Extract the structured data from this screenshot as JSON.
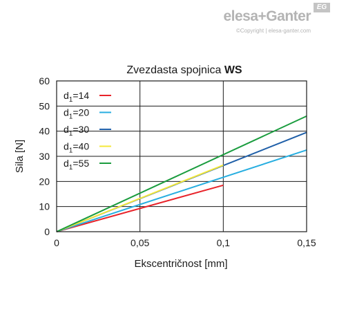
{
  "brand": {
    "logo": "elesa+Ganter",
    "badge": "EG",
    "copyright": "©Copyright | elesa-ganter.com"
  },
  "chart_data": {
    "type": "line",
    "title_regular": "Zvezdasta spojnica ",
    "title_bold": "WS",
    "xlabel": "Ekscentričnost [mm]",
    "ylabel": "Sila [N]",
    "xlim": [
      0,
      0.15
    ],
    "ylim": [
      0,
      60
    ],
    "x_ticks": [
      {
        "value": 0,
        "label": "0"
      },
      {
        "value": 0.05,
        "label": "0,05"
      },
      {
        "value": 0.1,
        "label": "0,1"
      },
      {
        "value": 0.15,
        "label": "0,15"
      }
    ],
    "y_ticks": [
      {
        "value": 0,
        "label": "0"
      },
      {
        "value": 10,
        "label": "10"
      },
      {
        "value": 20,
        "label": "20"
      },
      {
        "value": 30,
        "label": "30"
      },
      {
        "value": 40,
        "label": "40"
      },
      {
        "value": 50,
        "label": "50"
      },
      {
        "value": 60,
        "label": "60"
      }
    ],
    "grid_x": [
      0.05,
      0.1
    ],
    "grid_y": [
      10,
      20,
      30,
      40,
      50
    ],
    "legend_position": "top-left",
    "series": [
      {
        "name_base": "d",
        "name_sub": "1",
        "name_rest": "=14",
        "color": "#e8232a",
        "points": [
          [
            0,
            0
          ],
          [
            0.1,
            18.5
          ]
        ]
      },
      {
        "name_base": "d",
        "name_sub": "1",
        "name_rest": "=20",
        "color": "#27aee0",
        "points": [
          [
            0,
            0
          ],
          [
            0.15,
            32.5
          ]
        ]
      },
      {
        "name_base": "d",
        "name_sub": "1",
        "name_rest": "=30",
        "color": "#1f5fa8",
        "points": [
          [
            0,
            0
          ],
          [
            0.15,
            39.5
          ]
        ]
      },
      {
        "name_base": "d",
        "name_sub": "1",
        "name_rest": "=40",
        "color": "#f4e83a",
        "points": [
          [
            0,
            0
          ],
          [
            0.1,
            26.5
          ]
        ]
      },
      {
        "name_base": "d",
        "name_sub": "1",
        "name_rest": "=55",
        "color": "#1a9c3e",
        "points": [
          [
            0,
            0
          ],
          [
            0.15,
            46
          ]
        ]
      }
    ]
  }
}
